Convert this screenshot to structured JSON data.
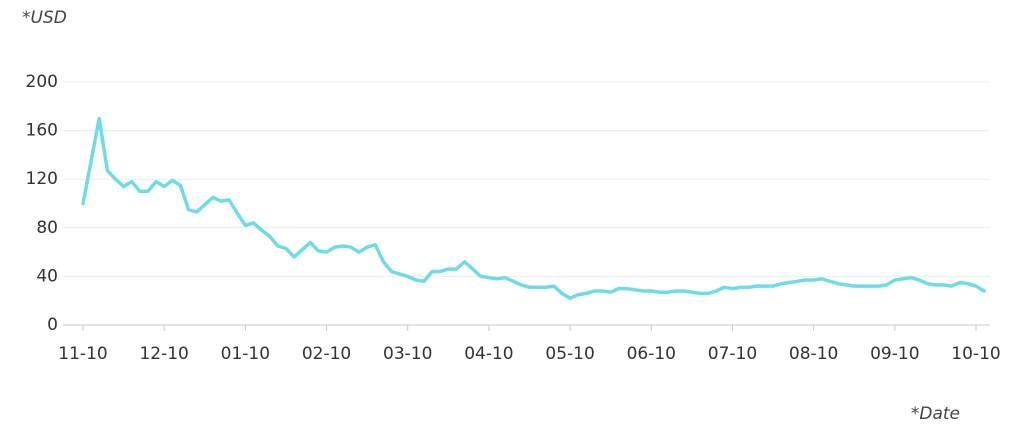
{
  "chart_data": {
    "type": "line",
    "y_label": "*USD",
    "x_label": "*Date",
    "categories": [
      "11-10",
      null,
      null,
      null,
      null,
      null,
      null,
      null,
      null,
      null,
      "12-10",
      null,
      null,
      null,
      null,
      null,
      null,
      null,
      null,
      null,
      "01-10",
      null,
      null,
      null,
      null,
      null,
      null,
      null,
      null,
      null,
      "02-10",
      null,
      null,
      null,
      null,
      null,
      null,
      null,
      null,
      null,
      "03-10",
      null,
      null,
      null,
      null,
      null,
      null,
      null,
      null,
      null,
      "04-10",
      null,
      null,
      null,
      null,
      null,
      null,
      null,
      null,
      null,
      "05-10",
      null,
      null,
      null,
      null,
      null,
      null,
      null,
      null,
      null,
      "06-10",
      null,
      null,
      null,
      null,
      null,
      null,
      null,
      null,
      null,
      "07-10",
      null,
      null,
      null,
      null,
      null,
      null,
      null,
      null,
      null,
      "08-10",
      null,
      null,
      null,
      null,
      null,
      null,
      null,
      null,
      null,
      "09-10",
      null,
      null,
      null,
      null,
      null,
      null,
      null,
      null,
      null,
      "10-10",
      null
    ],
    "values": [
      100,
      135,
      170,
      127,
      120,
      114,
      118,
      110,
      110,
      118,
      114,
      119,
      115,
      95,
      93,
      99,
      105,
      102,
      103,
      92,
      82,
      84,
      78,
      73,
      65,
      63,
      56,
      62,
      68,
      61,
      60,
      64,
      65,
      64,
      60,
      64,
      66,
      52,
      44,
      42,
      40,
      37,
      36,
      44,
      44,
      46,
      46,
      52,
      46,
      40,
      39,
      38,
      39,
      36,
      33,
      31,
      31,
      31,
      32,
      26,
      22,
      25,
      26,
      28,
      28,
      27,
      30,
      30,
      29,
      28,
      28,
      27,
      27,
      28,
      28,
      27,
      26,
      26,
      28,
      31,
      30,
      31,
      31,
      32,
      32,
      32,
      34,
      35,
      36,
      37,
      37,
      38,
      36,
      34,
      33,
      32,
      32,
      32,
      32,
      33,
      37,
      38,
      39,
      37,
      34,
      33,
      33,
      32,
      35,
      34,
      32,
      28
    ],
    "color": "#6fdbe8",
    "ylim": [
      0,
      200
    ],
    "yticks": [
      0,
      40,
      80,
      120,
      160,
      200
    ],
    "grid": true
  }
}
